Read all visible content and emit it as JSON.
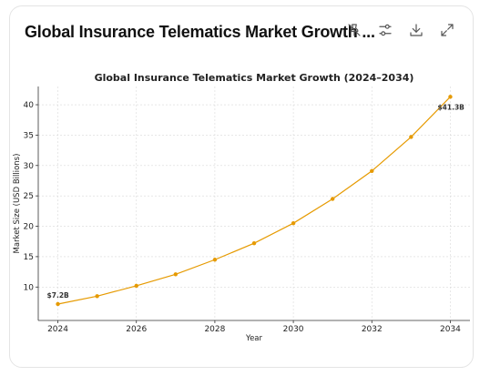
{
  "header": {
    "title": "Global Insurance Telematics Market Growth ...",
    "tools": [
      {
        "name": "unpin-icon"
      },
      {
        "name": "sliders-icon"
      },
      {
        "name": "download-icon"
      },
      {
        "name": "expand-icon"
      }
    ]
  },
  "chart_data": {
    "type": "line",
    "title": "Global Insurance Telematics Market Growth (2024–2034)",
    "xlabel": "Year",
    "ylabel": "Market Size (USD Billions)",
    "x": [
      2024,
      2025,
      2026,
      2027,
      2028,
      2029,
      2030,
      2031,
      2032,
      2033,
      2034
    ],
    "series": [
      {
        "values": [
          7.2,
          8.5,
          10.2,
          12.1,
          14.5,
          17.2,
          20.5,
          24.5,
          29.1,
          34.7,
          41.3
        ],
        "color": "#e69a00"
      }
    ],
    "xticks": [
      "2024",
      "2026",
      "2028",
      "2030",
      "2032",
      "2034"
    ],
    "yticks": [
      "10",
      "15",
      "20",
      "25",
      "30",
      "35",
      "40"
    ],
    "xlim": [
      2023.5,
      2034.5
    ],
    "ylim": [
      4.5,
      43.0
    ],
    "grid": true,
    "annotations": [
      {
        "x": 2024,
        "y": 7.2,
        "text": "$7.2B"
      },
      {
        "x": 2034,
        "y": 41.3,
        "text": "$41.3B"
      }
    ]
  }
}
